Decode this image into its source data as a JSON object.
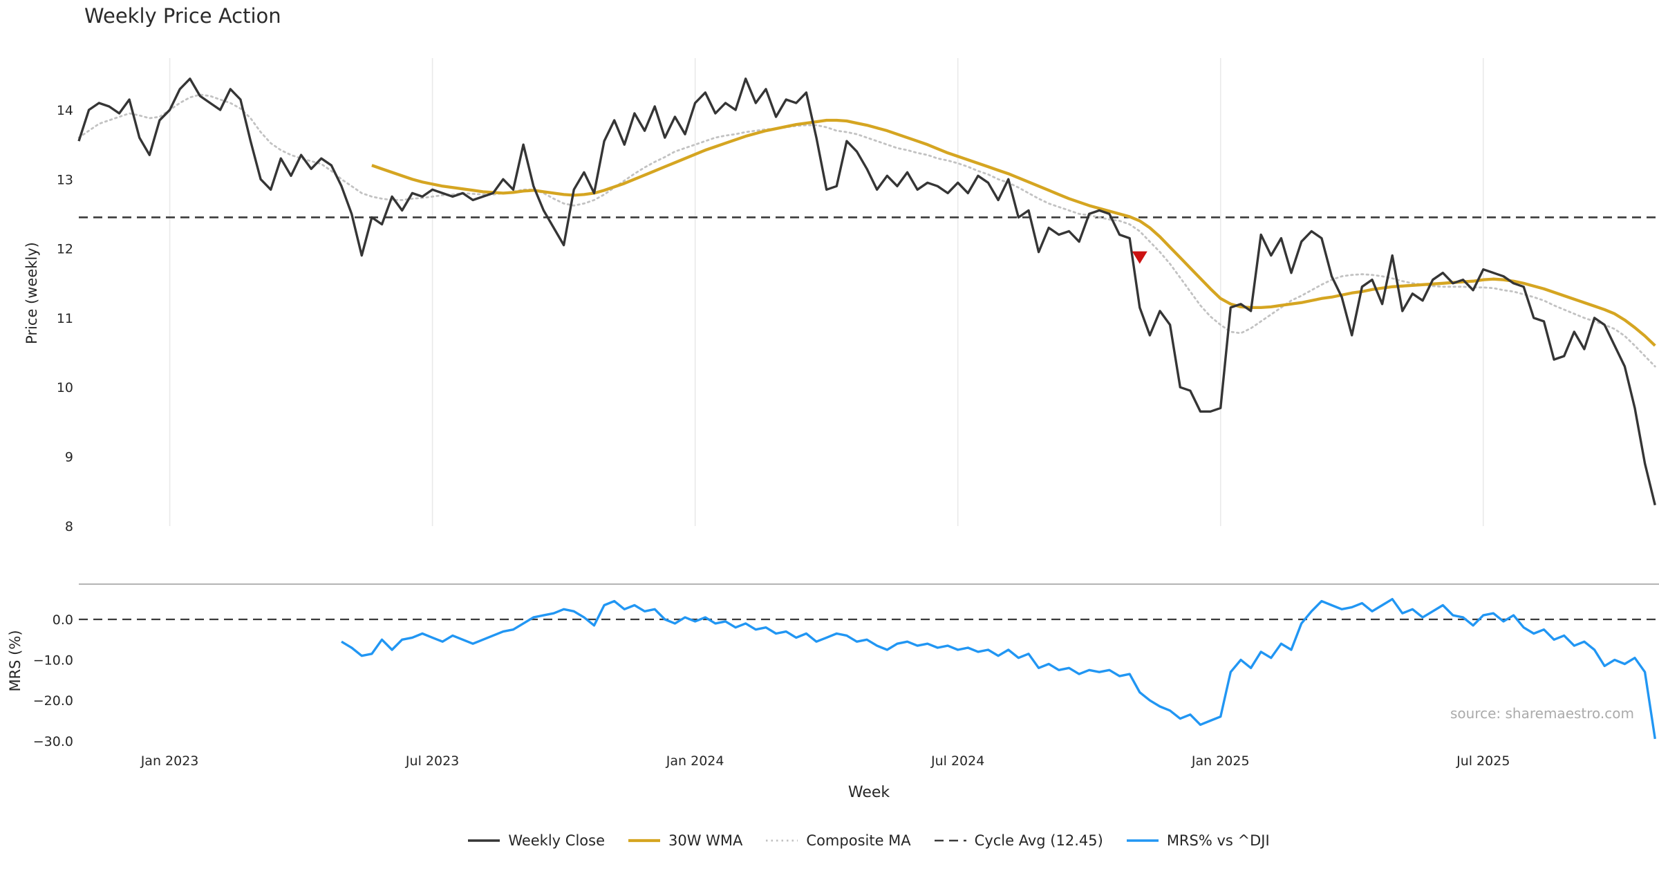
{
  "title": "Weekly Price Action",
  "source_credit": "source: sharemaestro.com",
  "xlabel": "Week",
  "colors": {
    "weekly_close": "#353535",
    "wma_30w": "#d5a521",
    "composite_ma": "#c2c2c2",
    "cycle_avg": "#3a3a3a",
    "mrs": "#2196f3",
    "marker_red": "#cc1212",
    "grid": "#e9e9e9",
    "spine": "#9b9b9b",
    "tick_text": "#262626"
  },
  "legend": [
    {
      "label": "Weekly Close",
      "color": "#353535",
      "dash": "",
      "width": 3.4
    },
    {
      "label": "30W WMA",
      "color": "#d5a521",
      "dash": "",
      "width": 4.3
    },
    {
      "label": "Composite MA",
      "color": "#c2c2c2",
      "dash": "2.5 5",
      "width": 2.8
    },
    {
      "label": "Cycle Avg (12.45)",
      "color": "#3a3a3a",
      "dash": "13 8",
      "width": 2.6
    },
    {
      "label": "MRS% vs ^DJI",
      "color": "#2196f3",
      "dash": "",
      "width": 3.4
    }
  ],
  "chart_data": {
    "type": "line",
    "x_unit": "weekly index, Nov 2022 – Nov 2025",
    "x_ticks": [
      {
        "label": "Jan 2023",
        "week": 9
      },
      {
        "label": "Jul 2023",
        "week": 35
      },
      {
        "label": "Jan 2024",
        "week": 61
      },
      {
        "label": "Jul 2024",
        "week": 87
      },
      {
        "label": "Jan 2025",
        "week": 113
      },
      {
        "label": "Jul 2025",
        "week": 139
      }
    ],
    "price_panel": {
      "ylabel": "Price (weekly)",
      "ylim": [
        7.95,
        14.75
      ],
      "yticks": [
        14,
        13,
        12,
        11,
        10,
        9,
        8
      ],
      "cycle_avg": 12.45,
      "marker": {
        "name": "signal",
        "shape": "triangle-down",
        "week": 105,
        "value": 11.87
      },
      "series": [
        {
          "name": "Weekly Close",
          "start_week": 0,
          "values": [
            13.55,
            14.0,
            14.1,
            14.05,
            13.95,
            14.15,
            13.6,
            13.35,
            13.85,
            14.0,
            14.3,
            14.45,
            14.2,
            14.1,
            14.0,
            14.3,
            14.15,
            13.55,
            13.0,
            12.85,
            13.3,
            13.05,
            13.35,
            13.15,
            13.3,
            13.2,
            12.9,
            12.5,
            11.9,
            12.45,
            12.35,
            12.75,
            12.55,
            12.8,
            12.75,
            12.85,
            12.8,
            12.75,
            12.8,
            12.7,
            12.75,
            12.8,
            13.0,
            12.85,
            13.5,
            12.9,
            12.55,
            12.3,
            12.05,
            12.85,
            13.1,
            12.8,
            13.55,
            13.85,
            13.5,
            13.95,
            13.7,
            14.05,
            13.6,
            13.9,
            13.65,
            14.1,
            14.25,
            13.95,
            14.1,
            14.0,
            14.45,
            14.1,
            14.3,
            13.9,
            14.15,
            14.1,
            14.25,
            13.6,
            12.85,
            12.9,
            13.55,
            13.4,
            13.15,
            12.85,
            13.05,
            12.9,
            13.1,
            12.85,
            12.95,
            12.9,
            12.8,
            12.95,
            12.8,
            13.05,
            12.95,
            12.7,
            13.0,
            12.45,
            12.55,
            11.95,
            12.3,
            12.2,
            12.25,
            12.1,
            12.5,
            12.55,
            12.5,
            12.2,
            12.15,
            11.15,
            10.75,
            11.1,
            10.9,
            10.0,
            9.95,
            9.65,
            9.65,
            9.7,
            11.15,
            11.2,
            11.1,
            12.2,
            11.9,
            12.15,
            11.65,
            12.1,
            12.25,
            12.15,
            11.6,
            11.3,
            10.75,
            11.45,
            11.55,
            11.2,
            11.9,
            11.1,
            11.35,
            11.25,
            11.55,
            11.65,
            11.5,
            11.55,
            11.4,
            11.7,
            11.65,
            11.6,
            11.5,
            11.45,
            11.0,
            10.95,
            10.4,
            10.45,
            10.8,
            10.55,
            11.0,
            10.9,
            10.6,
            10.3,
            9.7,
            8.9,
            8.3
          ]
        },
        {
          "name": "30W WMA",
          "start_week": 29,
          "values": [
            13.2,
            13.15,
            13.1,
            13.05,
            13.0,
            12.96,
            12.93,
            12.9,
            12.88,
            12.86,
            12.84,
            12.82,
            12.81,
            12.8,
            12.81,
            12.83,
            12.84,
            12.82,
            12.8,
            12.78,
            12.77,
            12.78,
            12.8,
            12.84,
            12.89,
            12.94,
            13.0,
            13.06,
            13.12,
            13.18,
            13.24,
            13.3,
            13.36,
            13.42,
            13.47,
            13.52,
            13.57,
            13.62,
            13.66,
            13.7,
            13.73,
            13.76,
            13.79,
            13.81,
            13.83,
            13.85,
            13.85,
            13.84,
            13.81,
            13.78,
            13.74,
            13.7,
            13.65,
            13.6,
            13.55,
            13.5,
            13.44,
            13.38,
            13.33,
            13.28,
            13.23,
            13.18,
            13.13,
            13.08,
            13.02,
            12.96,
            12.9,
            12.84,
            12.78,
            12.72,
            12.67,
            12.62,
            12.58,
            12.54,
            12.5,
            12.46,
            12.4,
            12.3,
            12.17,
            12.02,
            11.87,
            11.72,
            11.57,
            11.42,
            11.28,
            11.2,
            11.16,
            11.15,
            11.15,
            11.16,
            11.18,
            11.2,
            11.22,
            11.25,
            11.28,
            11.3,
            11.33,
            11.36,
            11.38,
            11.41,
            11.43,
            11.45,
            11.46,
            11.47,
            11.48,
            11.49,
            11.5,
            11.51,
            11.52,
            11.53,
            11.55,
            11.56,
            11.55,
            11.53,
            11.5,
            11.46,
            11.42,
            11.37,
            11.32,
            11.27,
            11.22,
            11.17,
            11.12,
            11.06,
            10.97,
            10.86,
            10.74,
            10.6
          ]
        },
        {
          "name": "Composite MA",
          "start_week": 0,
          "values": [
            13.6,
            13.7,
            13.8,
            13.85,
            13.9,
            13.95,
            13.92,
            13.88,
            13.9,
            14.0,
            14.1,
            14.18,
            14.22,
            14.2,
            14.15,
            14.1,
            14.02,
            13.88,
            13.68,
            13.52,
            13.42,
            13.35,
            13.3,
            13.26,
            13.22,
            13.12,
            13.0,
            12.9,
            12.8,
            12.75,
            12.72,
            12.7,
            12.7,
            12.72,
            12.73,
            12.75,
            12.77,
            12.78,
            12.8,
            12.79,
            12.78,
            12.78,
            12.8,
            12.82,
            12.85,
            12.85,
            12.8,
            12.72,
            12.65,
            12.62,
            12.65,
            12.7,
            12.78,
            12.88,
            12.98,
            13.08,
            13.17,
            13.25,
            13.32,
            13.4,
            13.45,
            13.5,
            13.55,
            13.6,
            13.63,
            13.65,
            13.68,
            13.7,
            13.72,
            13.73,
            13.75,
            13.77,
            13.78,
            13.78,
            13.75,
            13.7,
            13.68,
            13.65,
            13.6,
            13.55,
            13.5,
            13.45,
            13.42,
            13.38,
            13.35,
            13.3,
            13.27,
            13.23,
            13.18,
            13.12,
            13.07,
            13.0,
            12.95,
            12.88,
            12.8,
            12.72,
            12.65,
            12.6,
            12.55,
            12.5,
            12.48,
            12.45,
            12.42,
            12.4,
            12.35,
            12.25,
            12.1,
            11.95,
            11.78,
            11.58,
            11.38,
            11.18,
            11.02,
            10.9,
            10.8,
            10.78,
            10.85,
            10.95,
            11.05,
            11.15,
            11.25,
            11.32,
            11.4,
            11.48,
            11.55,
            11.6,
            11.62,
            11.63,
            11.62,
            11.6,
            11.57,
            11.53,
            11.5,
            11.48,
            11.46,
            11.45,
            11.45,
            11.45,
            11.44,
            11.44,
            11.43,
            11.4,
            11.38,
            11.34,
            11.3,
            11.25,
            11.18,
            11.12,
            11.06,
            11.0,
            10.95,
            10.9,
            10.84,
            10.74,
            10.6,
            10.45,
            10.3
          ]
        }
      ]
    },
    "mrs_panel": {
      "ylabel": "MRS (%)",
      "ylim": [
        -31,
        8.7
      ],
      "zero_line": 0,
      "yticks": [
        {
          "label": "0.0",
          "value": 0
        },
        {
          "label": "−10.0",
          "value": -10
        },
        {
          "label": "−20.0",
          "value": -20
        },
        {
          "label": "−30.0",
          "value": -30
        }
      ],
      "series": [
        {
          "name": "MRS% vs ^DJI",
          "start_week": 26,
          "values": [
            -5.5,
            -7.0,
            -9.0,
            -8.5,
            -5.0,
            -7.5,
            -5.0,
            -4.5,
            -3.5,
            -4.5,
            -5.5,
            -4.0,
            -5.0,
            -6.0,
            -5.0,
            -4.0,
            -3.0,
            -2.5,
            -1.0,
            0.5,
            1.0,
            1.5,
            2.5,
            2.0,
            0.5,
            -1.5,
            3.5,
            4.5,
            2.5,
            3.5,
            2.0,
            2.5,
            0.0,
            -1.0,
            0.5,
            -0.5,
            0.5,
            -1.0,
            -0.5,
            -2.0,
            -1.0,
            -2.5,
            -2.0,
            -3.5,
            -3.0,
            -4.5,
            -3.5,
            -5.5,
            -4.5,
            -3.5,
            -4.0,
            -5.5,
            -5.0,
            -6.5,
            -7.5,
            -6.0,
            -5.5,
            -6.5,
            -6.0,
            -7.0,
            -6.5,
            -7.5,
            -7.0,
            -8.0,
            -7.5,
            -9.0,
            -7.5,
            -9.5,
            -8.5,
            -12.0,
            -11.0,
            -12.5,
            -12.0,
            -13.5,
            -12.5,
            -13.0,
            -12.5,
            -14.0,
            -13.5,
            -18.0,
            -20.0,
            -21.5,
            -22.5,
            -24.5,
            -23.5,
            -26.0,
            -25.0,
            -24.0,
            -13.0,
            -10.0,
            -12.0,
            -8.0,
            -9.5,
            -6.0,
            -7.5,
            -1.0,
            2.0,
            4.5,
            3.5,
            2.5,
            3.0,
            4.0,
            2.0,
            3.5,
            5.0,
            1.5,
            2.5,
            0.5,
            2.0,
            3.5,
            1.0,
            0.5,
            -1.5,
            1.0,
            1.5,
            -0.5,
            1.0,
            -2.0,
            -3.5,
            -2.5,
            -5.0,
            -4.0,
            -6.5,
            -5.5,
            -7.5,
            -11.5,
            -10.0,
            -11.0,
            -9.5,
            -13.0,
            -29.5
          ]
        }
      ]
    }
  }
}
